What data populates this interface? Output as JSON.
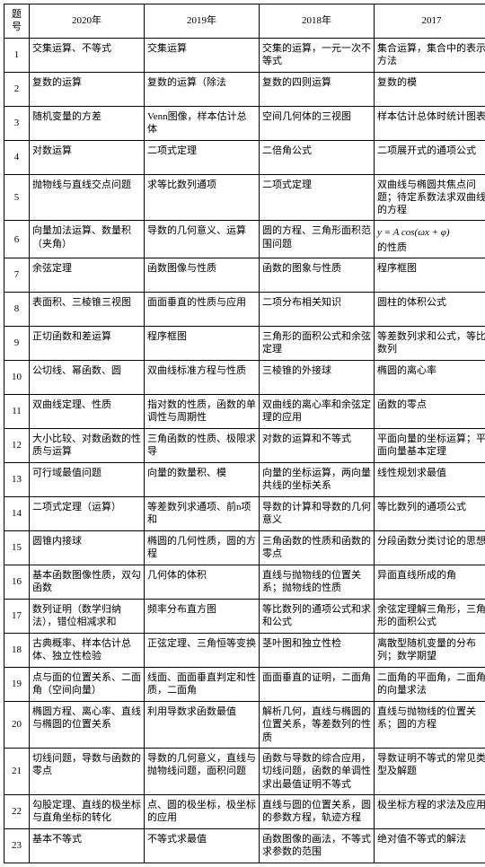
{
  "table": {
    "columns": [
      "题号",
      "2020年",
      "2019年",
      "2018年",
      "2017"
    ],
    "rows": [
      {
        "n": "1",
        "c1": "交集运算、不等式",
        "c2": "交集运算",
        "c3": "交集的运算，一元一次不等式",
        "c4": "集合运算，集合中的表示方法"
      },
      {
        "n": "2",
        "c1": "复数的运算",
        "c2": "复数的运算（除法",
        "c3": "复数的四则运算",
        "c4": "复数的模"
      },
      {
        "n": "3",
        "c1": "随机变量的方差",
        "c2": "Venn图像，样本估计总体",
        "c3": "空间几何体的三视图",
        "c4": "样本估计总体时统计图表"
      },
      {
        "n": "4",
        "c1": "对数运算",
        "c2": "二项式定理",
        "c3": "二倍角公式",
        "c4": "二项展开式的通项公式"
      },
      {
        "n": "5",
        "c1": "抛物线与直线交点问题",
        "c2": "求等比数列通项",
        "c3": "二项式定理",
        "c4": "双曲线与椭圆共焦点问题；待定系数法求双曲线的方程"
      },
      {
        "n": "6",
        "c1": "向量加法运算、数量积（夹角）",
        "c2": "导数的几何意义、运算",
        "c3": "圆的方程、三角形面积范围问题",
        "c4_pre": "",
        "c4_formula": "y = A cos(ωx + φ)",
        "c4_post": "的性质"
      },
      {
        "n": "7",
        "c1": "余弦定理",
        "c2": "函数图像与性质",
        "c3": "函数的图象与性质",
        "c4": "程序框图"
      },
      {
        "n": "8",
        "c1": "表面积、三棱锥三视图",
        "c2": "面面垂直的性质与应用",
        "c3": "二项分布相关知识",
        "c4": "圆柱的体积公式"
      },
      {
        "n": "9",
        "c1": "正切函数和差运算",
        "c2": "程序框图",
        "c3": "三角形的面积公式和余弦定理",
        "c4": "等差数列求和公式，等比数列"
      },
      {
        "n": "10",
        "c1": "公切线、幂函数、圆",
        "c2": "双曲线标准方程与性质",
        "c3": "三棱锥的外接球",
        "c4": "椭圆的离心率"
      },
      {
        "n": "11",
        "c1": "双曲线定理、性质",
        "c2": "指对数的性质，函数的单调性与周期性",
        "c3": "双曲线的离心率和余弦定理的应用",
        "c4": "函数的零点"
      },
      {
        "n": "12",
        "c1": "大小比较、对数函数的性质与运算",
        "c2": "三角函数的性质、极限求导",
        "c3": "对数的运算和不等式",
        "c4": "平面向量的坐标运算；平面向量基本定理"
      },
      {
        "n": "13",
        "c1": "可行域最值问题",
        "c2": "向量的数量积、模",
        "c3": "向量的坐标运算，两向量共线的坐标关系",
        "c4": "线性规划求最值"
      },
      {
        "n": "14",
        "c1": "二项式定理（运算）",
        "c2": "等差数列求通项、前n项和",
        "c3": "导数的计算和导数的几何意义",
        "c4": "等比数列的通项公式"
      },
      {
        "n": "15",
        "c1": "圆锥内接球",
        "c2": "椭圆的几何性质，圆的方程",
        "c3": "三角函数的性质和函数的零点",
        "c4": "分段函数分类讨论的思想"
      },
      {
        "n": "16",
        "c1": "基本函数图像性质，双勾函数",
        "c2": "几何体的体积",
        "c3": "直线与抛物线的位置关系；抛物线的性质",
        "c4": "异面直线所成的角"
      },
      {
        "n": "17",
        "c1": "数列证明（数学归纳法），错位相减求和",
        "c2": "频率分布直方图",
        "c3": "等比数列的通项公式和求和公式",
        "c4": "余弦定理解三角形，三角形的面积公式"
      },
      {
        "n": "18",
        "c1": "古典概率、样本估计总体、独立性检验",
        "c2": "正弦定理、三角恒等变换",
        "c3": "茎叶图和独立性检",
        "c4": "离散型随机变量的分布列；数学期望"
      },
      {
        "n": "19",
        "c1": "点与面的位置关系、二面角（空间向量）",
        "c2": "线面、面面垂直判定和性质，二面角",
        "c3": "面面垂直的证明，二面角",
        "c4": "二面角的平面角，二面角的向量求法"
      },
      {
        "n": "20",
        "c1": "椭圆方程、离心率、直线与椭圆的位置关系",
        "c2": "利用导数求函数最值",
        "c3": "解析几何，直线与椭圆的位置关系，等差数列的性质",
        "c4": "直线与抛物线的位置关系；圆的方程"
      },
      {
        "n": "21",
        "c1": "切线问题，导数与函数的零点",
        "c2": "导数的几何意义，直线与抛物线问题，面积问题",
        "c3": "函数与导数的综合应用，切线问题，函数的单调性求出最值证明不等式",
        "c4": "导数证明不等式的常见类型及解题"
      },
      {
        "n": "22",
        "c1": "勾股定理、直线的极坐标与直角坐标的转化",
        "c2": "点、圆的极坐标，极坐标的应用",
        "c3": "直线与圆的位置关系，圆的参数方程，轨迹方程",
        "c4": "极坐标方程的求法及应用"
      },
      {
        "n": "23",
        "c1": "基本不等式",
        "c2": "不等式求最值",
        "c3": "函数图像的画法，不等式求参数的范围",
        "c4": "绝对值不等式的解法"
      }
    ]
  }
}
